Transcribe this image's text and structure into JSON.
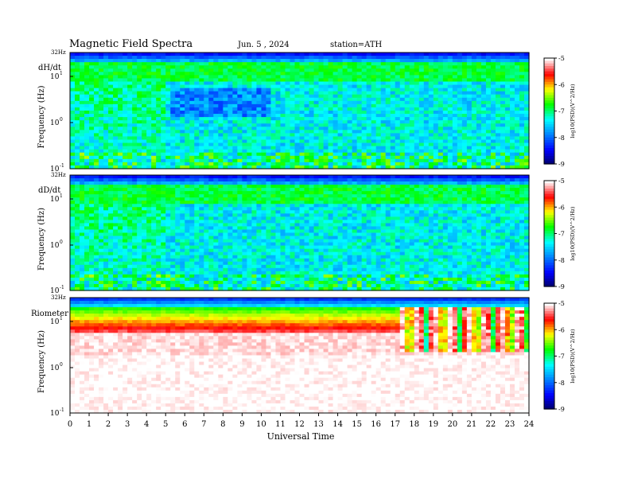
{
  "header": {
    "title": "Magnetic Field Spectra",
    "date": "Jun. 5 , 2024",
    "station": "station=ATH"
  },
  "chart_data": [
    {
      "type": "heatmap",
      "panel": "dH/dt",
      "label": "dH/dt",
      "ylabel": "Frequency (Hz)",
      "top_label": "32Hz",
      "yticks": [
        {
          "exp": "1"
        },
        {
          "exp": "0"
        },
        {
          "exp": "-1"
        }
      ],
      "xlim": [
        0,
        24
      ],
      "colorbar": {
        "label": "log10(PSD)(V^2/Hz)",
        "ticks": [
          "-5",
          "-6",
          "-7",
          "-8",
          "-9"
        ],
        "range": [
          -9,
          -5
        ]
      }
    },
    {
      "type": "heatmap",
      "panel": "dD/dt",
      "label": "dD/dt",
      "ylabel": "Frequency (Hz)",
      "top_label": "32Hz",
      "yticks": [
        {
          "exp": "1"
        },
        {
          "exp": "0"
        },
        {
          "exp": "-1"
        }
      ],
      "xlim": [
        0,
        24
      ],
      "colorbar": {
        "label": "log10(PSD)(V^2/Hz)",
        "ticks": [
          "-5",
          "-6",
          "-7",
          "-8",
          "-9"
        ],
        "range": [
          -9,
          -5
        ]
      }
    },
    {
      "type": "heatmap",
      "panel": "Riometer",
      "label": "Riometer",
      "ylabel": "Frequency (Hz)",
      "top_label": "32Hz",
      "yticks": [
        {
          "exp": "1"
        },
        {
          "exp": "0"
        },
        {
          "exp": "-1"
        }
      ],
      "xlim": [
        0,
        24
      ],
      "colorbar": {
        "label": "log10(PSD)(V^2/Hz)",
        "ticks": [
          "-5",
          "-6",
          "-7",
          "-8",
          "-9"
        ],
        "range": [
          -9,
          -5
        ]
      }
    }
  ],
  "x_axis": {
    "label": "Universal Time",
    "ticks": [
      "0",
      "1",
      "2",
      "3",
      "4",
      "5",
      "6",
      "7",
      "8",
      "9",
      "10",
      "11",
      "12",
      "13",
      "14",
      "15",
      "16",
      "17",
      "18",
      "19",
      "20",
      "21",
      "22",
      "23",
      "24"
    ]
  },
  "colors": {
    "cmap": [
      "#000060",
      "#0000ff",
      "#0080ff",
      "#00ffff",
      "#00ff00",
      "#ffff00",
      "#ff0000",
      "#ffffff"
    ]
  }
}
